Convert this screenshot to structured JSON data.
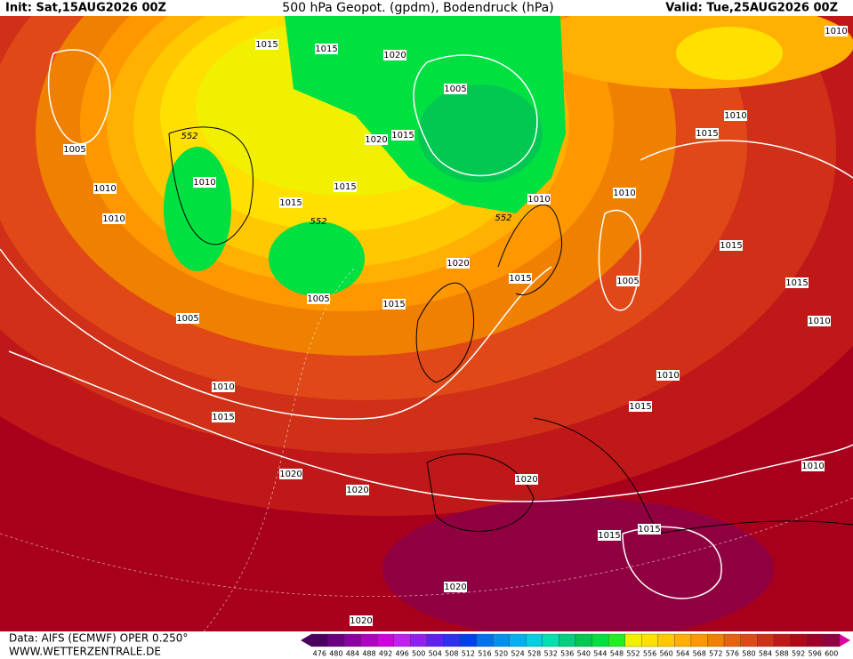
{
  "header": {
    "init": "Init: Sat,15AUG2026 00Z",
    "title": "500 hPa Geopot. (gpdm), Bodendruck (hPa)",
    "valid": "Valid: Tue,25AUG2026 00Z"
  },
  "footer": {
    "data": "Data: AIFS (ECMWF) OPER 0.250°",
    "website": "WWW.WETTERZENTRALE.DE"
  },
  "colorbar": {
    "values": [
      476,
      480,
      484,
      488,
      492,
      496,
      500,
      504,
      508,
      512,
      516,
      520,
      524,
      528,
      532,
      536,
      540,
      544,
      548,
      552,
      556,
      560,
      564,
      568,
      572,
      576,
      580,
      584,
      588,
      592,
      596,
      600
    ],
    "colors": [
      "#4b0060",
      "#6a0080",
      "#8a00a0",
      "#b000c0",
      "#d000e0",
      "#c020f0",
      "#9020f0",
      "#6020f0",
      "#3030f0",
      "#0040f0",
      "#0070f0",
      "#0090f0",
      "#00b0f0",
      "#00d0e0",
      "#00e0b0",
      "#00d080",
      "#00c850",
      "#00e040",
      "#20f020",
      "#f0f000",
      "#ffe000",
      "#ffc800",
      "#ffb000",
      "#ff9800",
      "#f08000",
      "#e86010",
      "#e04818",
      "#d03018",
      "#c01818",
      "#b00818",
      "#a00028",
      "#900040"
    ]
  },
  "isobar_labels": [
    "1015",
    "1015",
    "1020",
    "1005",
    "1010",
    "1010",
    "1015",
    "552",
    "1020",
    "1015",
    "1005",
    "1010",
    "1015",
    "1010",
    "1015",
    "1010",
    "552",
    "552",
    "1010",
    "1010",
    "1015",
    "1020",
    "1015",
    "1005",
    "1015",
    "1005",
    "1015",
    "1005",
    "1010",
    "1010",
    "1010",
    "1015",
    "1015",
    "1010",
    "1020",
    "1020",
    "1020",
    "1015",
    "1015",
    "1020",
    "1020"
  ]
}
